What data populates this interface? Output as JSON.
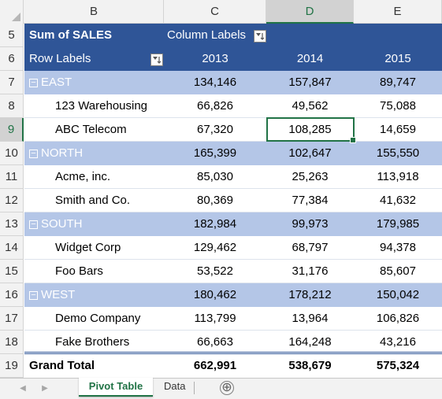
{
  "columns": {
    "b": "B",
    "c": "C",
    "d": "D",
    "e": "E"
  },
  "rows": [
    "5",
    "6",
    "7",
    "8",
    "9",
    "10",
    "11",
    "12",
    "13",
    "14",
    "15",
    "16",
    "17",
    "18",
    "19"
  ],
  "pivot": {
    "value_field": "Sum of SALES",
    "column_labels": "Column Labels",
    "row_labels": "Row Labels",
    "years": [
      "2013",
      "2014",
      "2015"
    ],
    "groups": [
      {
        "name": "EAST",
        "totals": [
          "134,146",
          "157,847",
          "89,747"
        ],
        "items": [
          {
            "name": "123 Warehousing",
            "values": [
              "66,826",
              "49,562",
              "75,088"
            ]
          },
          {
            "name": "ABC Telecom",
            "values": [
              "67,320",
              "108,285",
              "14,659"
            ]
          }
        ]
      },
      {
        "name": "NORTH",
        "totals": [
          "165,399",
          "102,647",
          "155,550"
        ],
        "items": [
          {
            "name": "Acme, inc.",
            "values": [
              "85,030",
              "25,263",
              "113,918"
            ]
          },
          {
            "name": "Smith and Co.",
            "values": [
              "80,369",
              "77,384",
              "41,632"
            ]
          }
        ]
      },
      {
        "name": "SOUTH",
        "totals": [
          "182,984",
          "99,973",
          "179,985"
        ],
        "items": [
          {
            "name": "Widget Corp",
            "values": [
              "129,462",
              "68,797",
              "94,378"
            ]
          },
          {
            "name": "Foo Bars",
            "values": [
              "53,522",
              "31,176",
              "85,607"
            ]
          }
        ]
      },
      {
        "name": "WEST",
        "totals": [
          "180,462",
          "178,212",
          "150,042"
        ],
        "items": [
          {
            "name": "Demo Company",
            "values": [
              "113,799",
              "13,964",
              "106,826"
            ]
          },
          {
            "name": "Fake Brothers",
            "values": [
              "66,663",
              "164,248",
              "43,216"
            ]
          }
        ]
      }
    ],
    "grand_total": {
      "label": "Grand Total",
      "values": [
        "662,991",
        "538,679",
        "575,324"
      ]
    }
  },
  "tabs": {
    "active": "Pivot Table",
    "other": "Data",
    "add_symbol": "⊕"
  },
  "colors": {
    "header": "#2f5597",
    "group_row": "#b4c6e7",
    "accent": "#217346"
  }
}
